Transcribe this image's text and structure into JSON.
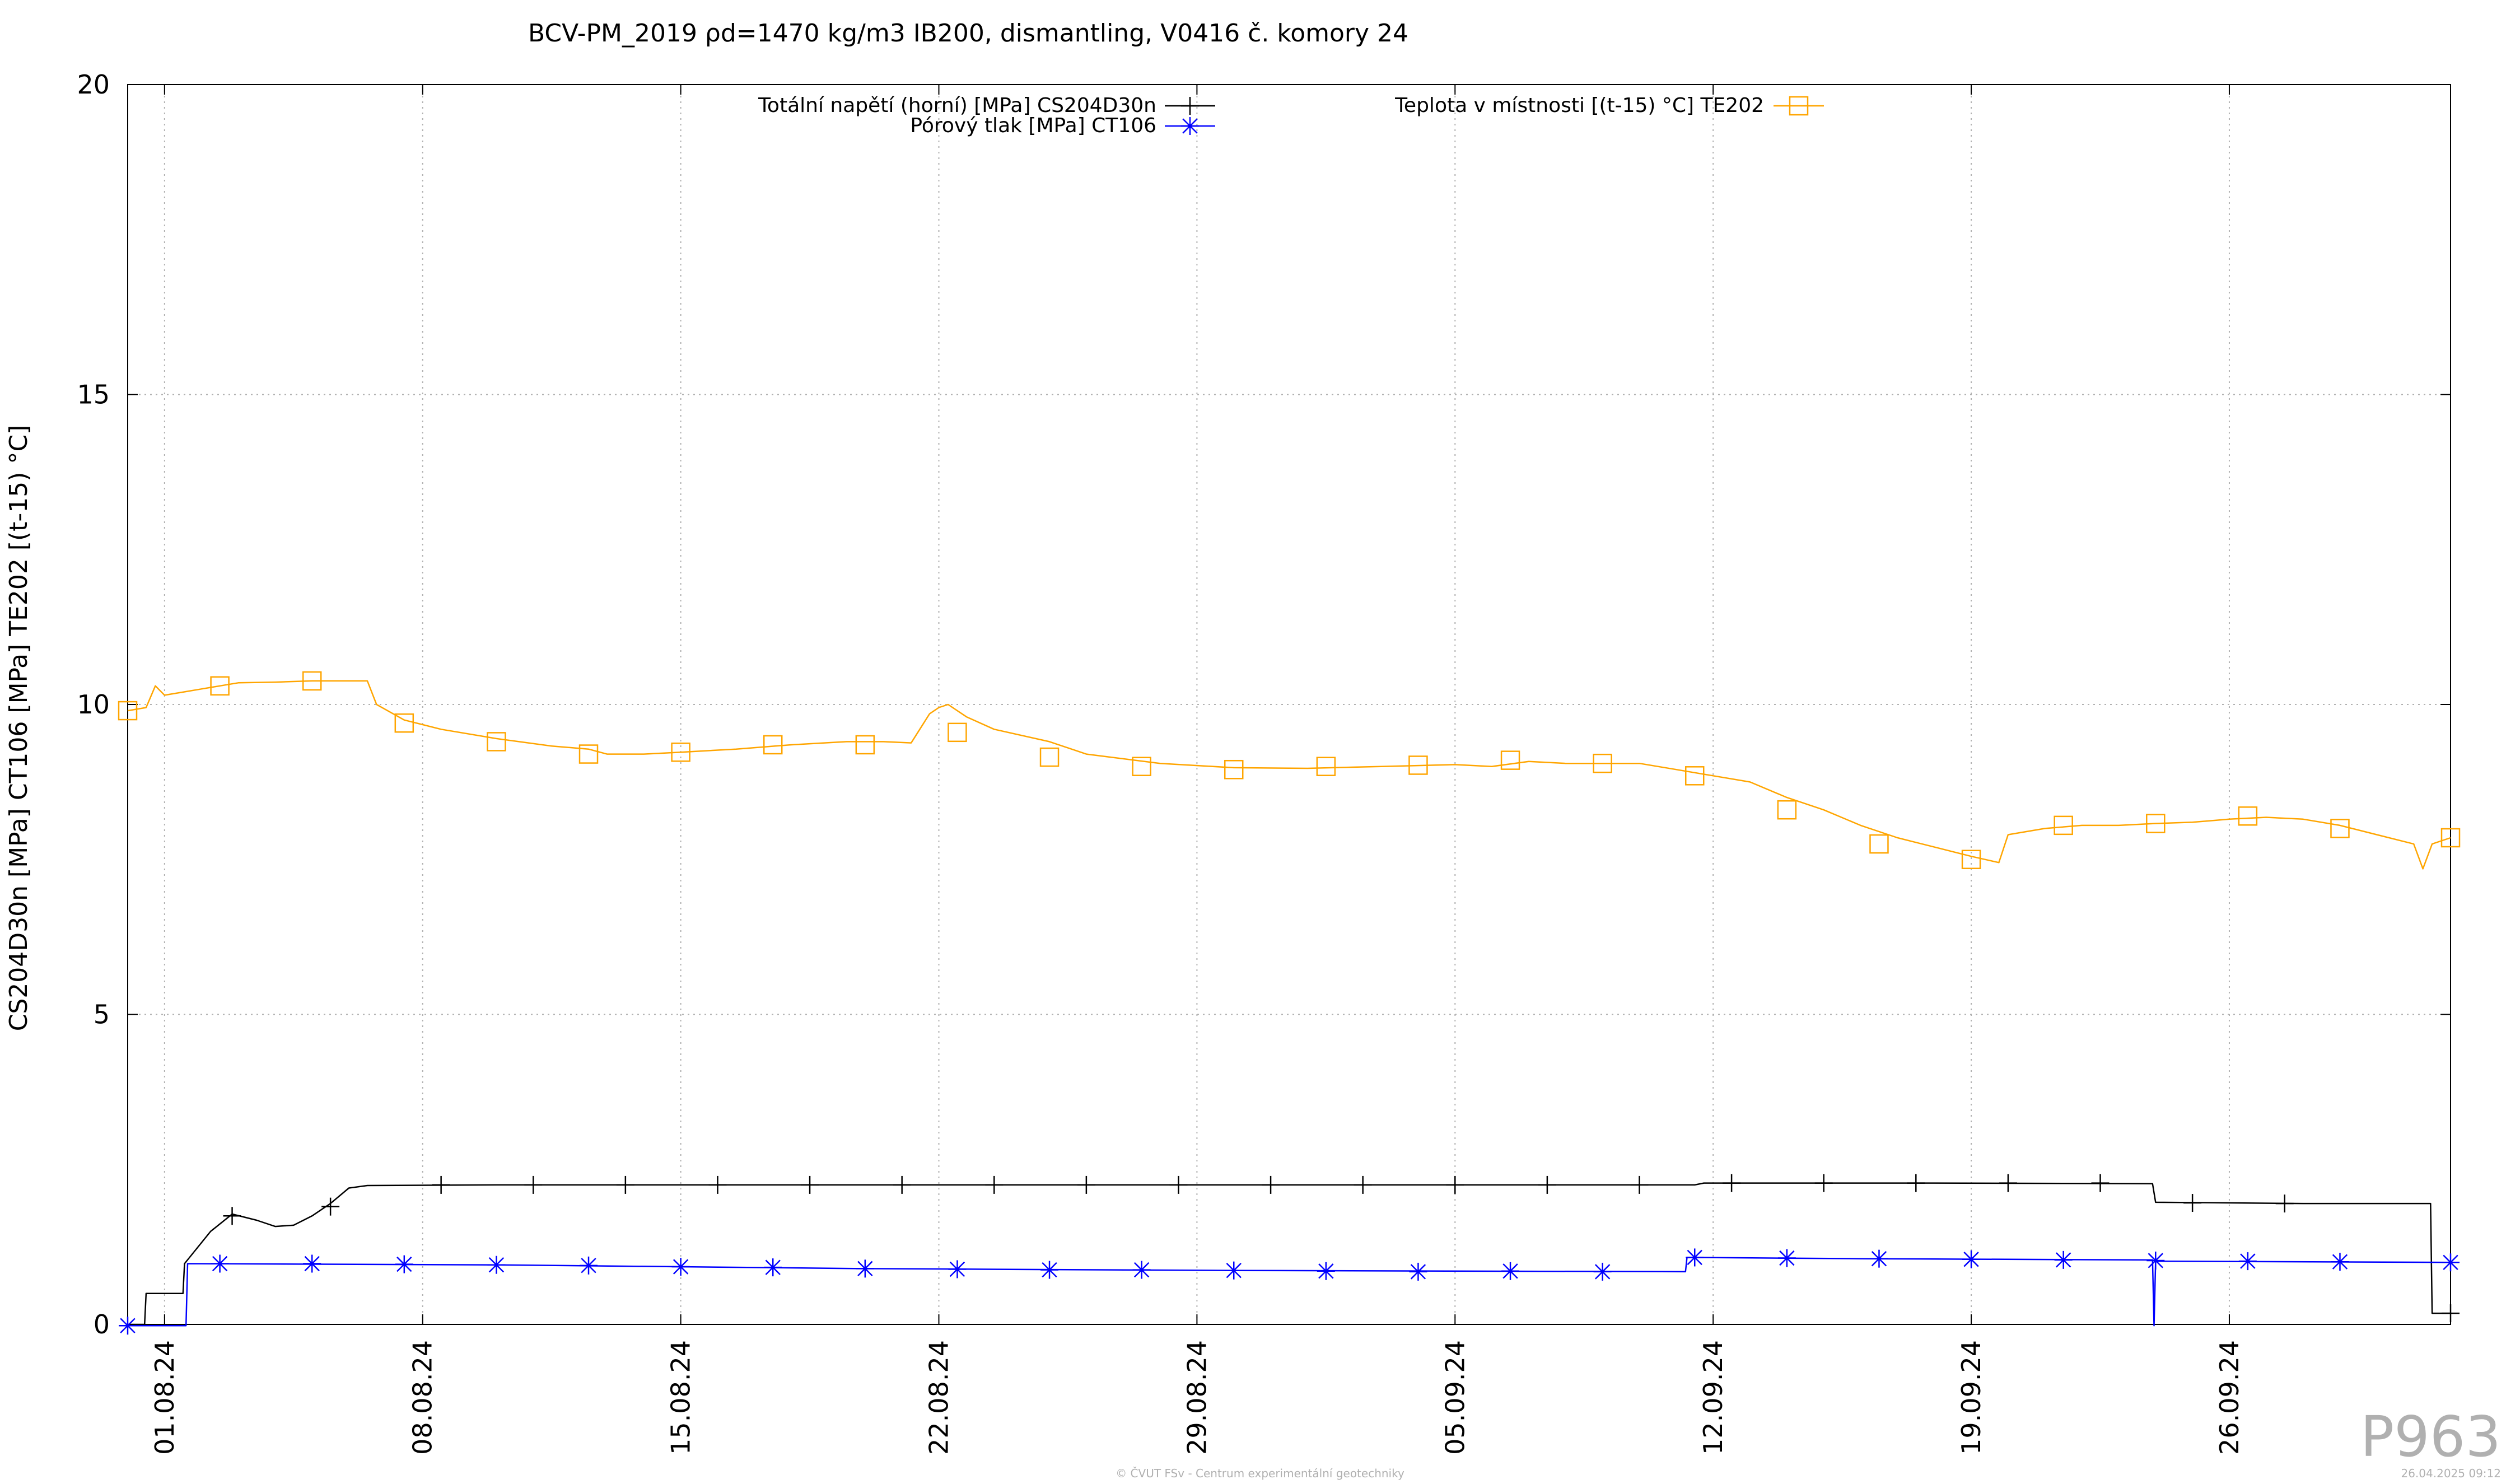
{
  "chart_data": {
    "type": "line",
    "title": "BCV-PM_2019 ρd=1470 kg/m3 IB200, dismantling, V0416 č. komory 24",
    "ylabel": "CS204D30n [MPa] CT106 [MPa] TE202 [(t-15) °C]",
    "xlabel": "",
    "ylim": [
      0,
      20
    ],
    "xlim": [
      "2024-07-31",
      "2024-10-02"
    ],
    "yticks": [
      0,
      5,
      10,
      15,
      20
    ],
    "xtick_labels": [
      {
        "label": "01.08.24",
        "date": "2024-08-01"
      },
      {
        "label": "08.08.24",
        "date": "2024-08-08"
      },
      {
        "label": "15.08.24",
        "date": "2024-08-15"
      },
      {
        "label": "22.08.24",
        "date": "2024-08-22"
      },
      {
        "label": "29.08.24",
        "date": "2024-08-29"
      },
      {
        "label": "05.09.24",
        "date": "2024-09-05"
      },
      {
        "label": "12.09.24",
        "date": "2024-09-12"
      },
      {
        "label": "19.09.24",
        "date": "2024-09-19"
      },
      {
        "label": "26.09.24",
        "date": "2024-09-26"
      }
    ],
    "grid": true,
    "legend_position": "top",
    "series": [
      {
        "name": "Totální napětí (horní) [MPa] CS204D30n",
        "color": "#000000",
        "marker": "plus",
        "points": [
          [
            "2024-07-31T00:00",
            0.0
          ],
          [
            "2024-07-31T11:00",
            0.0
          ],
          [
            "2024-07-31T12:00",
            0.5
          ],
          [
            "2024-08-01T12:00",
            0.5
          ],
          [
            "2024-08-01T13:00",
            0.98
          ],
          [
            "2024-08-02T06:00",
            1.5
          ],
          [
            "2024-08-02T20:00",
            1.78
          ],
          [
            "2024-08-03T12:00",
            1.68
          ],
          [
            "2024-08-04T00:00",
            1.58
          ],
          [
            "2024-08-04T12:00",
            1.6
          ],
          [
            "2024-08-05T00:00",
            1.75
          ],
          [
            "2024-08-05T12:00",
            1.95
          ],
          [
            "2024-08-06T00:00",
            2.2
          ],
          [
            "2024-08-06T12:00",
            2.24
          ],
          [
            "2024-08-10T00:00",
            2.25
          ],
          [
            "2024-08-20T00:00",
            2.25
          ],
          [
            "2024-09-01T00:00",
            2.25
          ],
          [
            "2024-09-11T12:00",
            2.25
          ],
          [
            "2024-09-11T18:00",
            2.28
          ],
          [
            "2024-09-18T00:00",
            2.28
          ],
          [
            "2024-09-23T22:00",
            2.27
          ],
          [
            "2024-09-24T00:00",
            1.97
          ],
          [
            "2024-09-28T00:00",
            1.95
          ],
          [
            "2024-10-01T11:00",
            1.95
          ],
          [
            "2024-10-01T12:00",
            0.18
          ],
          [
            "2024-10-02T00:00",
            0.18
          ]
        ],
        "marker_points": [
          [
            "2024-08-02T20:00",
            1.75
          ],
          [
            "2024-08-05T12:00",
            1.9
          ],
          [
            "2024-08-08T12:00",
            2.25
          ],
          [
            "2024-08-11T00:00",
            2.25
          ],
          [
            "2024-08-13T12:00",
            2.25
          ],
          [
            "2024-08-16T00:00",
            2.25
          ],
          [
            "2024-08-18T12:00",
            2.25
          ],
          [
            "2024-08-21T00:00",
            2.25
          ],
          [
            "2024-08-23T12:00",
            2.25
          ],
          [
            "2024-08-26T00:00",
            2.25
          ],
          [
            "2024-08-28T12:00",
            2.25
          ],
          [
            "2024-08-31T00:00",
            2.25
          ],
          [
            "2024-09-02T12:00",
            2.25
          ],
          [
            "2024-09-05T00:00",
            2.25
          ],
          [
            "2024-09-07T12:00",
            2.25
          ],
          [
            "2024-09-10T00:00",
            2.25
          ],
          [
            "2024-09-12T12:00",
            2.28
          ],
          [
            "2024-09-15T00:00",
            2.28
          ],
          [
            "2024-09-17T12:00",
            2.28
          ],
          [
            "2024-09-20T00:00",
            2.28
          ],
          [
            "2024-09-22T12:00",
            2.28
          ],
          [
            "2024-09-25T00:00",
            1.96
          ],
          [
            "2024-09-27T12:00",
            1.95
          ],
          [
            "2024-10-02T00:00",
            0.18
          ]
        ]
      },
      {
        "name": "Pórový tlak [MPa] CT106",
        "color": "#0000ff",
        "marker": "asterisk",
        "points": [
          [
            "2024-07-31T00:00",
            -0.02
          ],
          [
            "2024-08-01T14:00",
            -0.02
          ],
          [
            "2024-08-01T15:00",
            0.98
          ],
          [
            "2024-08-10T00:00",
            0.96
          ],
          [
            "2024-08-20T00:00",
            0.9
          ],
          [
            "2024-08-30T00:00",
            0.87
          ],
          [
            "2024-09-11T06:00",
            0.85
          ],
          [
            "2024-09-11T07:00",
            1.08
          ],
          [
            "2024-09-16T00:00",
            1.06
          ],
          [
            "2024-09-23T22:00",
            1.04
          ],
          [
            "2024-09-23T23:00",
            -0.02
          ],
          [
            "2024-09-24T00:00",
            1.02
          ],
          [
            "2024-10-02T00:00",
            1.0
          ]
        ],
        "marker_points": [
          [
            "2024-07-31T00:00",
            -0.02
          ],
          [
            "2024-08-02T12:00",
            0.98
          ],
          [
            "2024-08-05T00:00",
            0.98
          ],
          [
            "2024-08-07T12:00",
            0.97
          ],
          [
            "2024-08-10T00:00",
            0.96
          ],
          [
            "2024-08-12T12:00",
            0.95
          ],
          [
            "2024-08-15T00:00",
            0.93
          ],
          [
            "2024-08-17T12:00",
            0.92
          ],
          [
            "2024-08-20T00:00",
            0.9
          ],
          [
            "2024-08-22T12:00",
            0.89
          ],
          [
            "2024-08-25T00:00",
            0.88
          ],
          [
            "2024-08-27T12:00",
            0.88
          ],
          [
            "2024-08-30T00:00",
            0.87
          ],
          [
            "2024-09-01T12:00",
            0.86
          ],
          [
            "2024-09-04T00:00",
            0.85
          ],
          [
            "2024-09-06T12:00",
            0.86
          ],
          [
            "2024-09-09T00:00",
            0.85
          ],
          [
            "2024-09-11T12:00",
            1.08
          ],
          [
            "2024-09-14T00:00",
            1.07
          ],
          [
            "2024-09-16T12:00",
            1.06
          ],
          [
            "2024-09-19T00:00",
            1.05
          ],
          [
            "2024-09-21T12:00",
            1.04
          ],
          [
            "2024-09-24T00:00",
            1.03
          ],
          [
            "2024-09-26T12:00",
            1.02
          ],
          [
            "2024-09-29T00:00",
            1.01
          ],
          [
            "2024-10-02T00:00",
            1.0
          ]
        ]
      },
      {
        "name": "Teplota v místnosti [(t-15) °C] TE202",
        "color": "#ffa500",
        "marker": "square",
        "points": [
          [
            "2024-07-31T00:00",
            9.9
          ],
          [
            "2024-07-31T12:00",
            9.95
          ],
          [
            "2024-07-31T18:00",
            10.3
          ],
          [
            "2024-08-01T00:00",
            10.15
          ],
          [
            "2024-08-01T12:00",
            10.2
          ],
          [
            "2024-08-02T00:00",
            10.25
          ],
          [
            "2024-08-02T12:00",
            10.3
          ],
          [
            "2024-08-03T00:00",
            10.35
          ],
          [
            "2024-08-04T00:00",
            10.36
          ],
          [
            "2024-08-05T00:00",
            10.38
          ],
          [
            "2024-08-06T12:00",
            10.38
          ],
          [
            "2024-08-06T18:00",
            10.0
          ],
          [
            "2024-08-07T12:00",
            9.75
          ],
          [
            "2024-08-08T12:00",
            9.6
          ],
          [
            "2024-08-10T00:00",
            9.45
          ],
          [
            "2024-08-11T12:00",
            9.33
          ],
          [
            "2024-08-12T12:00",
            9.28
          ],
          [
            "2024-08-13T00:00",
            9.2
          ],
          [
            "2024-08-14T00:00",
            9.2
          ],
          [
            "2024-08-15T00:00",
            9.23
          ],
          [
            "2024-08-16T12:00",
            9.28
          ],
          [
            "2024-08-18T00:00",
            9.35
          ],
          [
            "2024-08-19T12:00",
            9.4
          ],
          [
            "2024-08-20T12:00",
            9.4
          ],
          [
            "2024-08-21T06:00",
            9.38
          ],
          [
            "2024-08-21T18:00",
            9.85
          ],
          [
            "2024-08-22T00:00",
            9.95
          ],
          [
            "2024-08-22T06:00",
            10.0
          ],
          [
            "2024-08-22T18:00",
            9.8
          ],
          [
            "2024-08-23T12:00",
            9.6
          ],
          [
            "2024-08-25T00:00",
            9.4
          ],
          [
            "2024-08-26T00:00",
            9.2
          ],
          [
            "2024-08-28T00:00",
            9.05
          ],
          [
            "2024-08-30T00:00",
            8.98
          ],
          [
            "2024-09-01T00:00",
            8.97
          ],
          [
            "2024-09-03T00:00",
            9.0
          ],
          [
            "2024-09-05T00:00",
            9.03
          ],
          [
            "2024-09-06T00:00",
            9.0
          ],
          [
            "2024-09-07T00:00",
            9.08
          ],
          [
            "2024-09-08T00:00",
            9.05
          ],
          [
            "2024-09-10T00:00",
            9.05
          ],
          [
            "2024-09-11T00:00",
            8.95
          ],
          [
            "2024-09-12T00:00",
            8.85
          ],
          [
            "2024-09-13T00:00",
            8.75
          ],
          [
            "2024-09-14T00:00",
            8.5
          ],
          [
            "2024-09-15T00:00",
            8.3
          ],
          [
            "2024-09-16T00:00",
            8.05
          ],
          [
            "2024-09-17T00:00",
            7.85
          ],
          [
            "2024-09-18T00:00",
            7.7
          ],
          [
            "2024-09-19T00:00",
            7.55
          ],
          [
            "2024-09-19T18:00",
            7.45
          ],
          [
            "2024-09-20T00:00",
            7.9
          ],
          [
            "2024-09-21T00:00",
            8.0
          ],
          [
            "2024-09-22T00:00",
            8.05
          ],
          [
            "2024-09-23T00:00",
            8.05
          ],
          [
            "2024-09-24T00:00",
            8.08
          ],
          [
            "2024-09-25T00:00",
            8.1
          ],
          [
            "2024-09-26T00:00",
            8.15
          ],
          [
            "2024-09-27T00:00",
            8.18
          ],
          [
            "2024-09-28T00:00",
            8.15
          ],
          [
            "2024-09-29T00:00",
            8.05
          ],
          [
            "2024-09-30T00:00",
            7.9
          ],
          [
            "2024-10-01T00:00",
            7.75
          ],
          [
            "2024-10-01T06:00",
            7.35
          ],
          [
            "2024-10-01T12:00",
            7.75
          ],
          [
            "2024-10-02T00:00",
            7.85
          ]
        ],
        "marker_points": [
          [
            "2024-07-31T00:00",
            9.9
          ],
          [
            "2024-08-02T12:00",
            10.3
          ],
          [
            "2024-08-05T00:00",
            10.38
          ],
          [
            "2024-08-07T12:00",
            9.7
          ],
          [
            "2024-08-10T00:00",
            9.4
          ],
          [
            "2024-08-12T12:00",
            9.2
          ],
          [
            "2024-08-15T00:00",
            9.23
          ],
          [
            "2024-08-17T12:00",
            9.35
          ],
          [
            "2024-08-20T00:00",
            9.35
          ],
          [
            "2024-08-22T12:00",
            9.55
          ],
          [
            "2024-08-25T00:00",
            9.15
          ],
          [
            "2024-08-27T12:00",
            9.0
          ],
          [
            "2024-08-30T00:00",
            8.95
          ],
          [
            "2024-09-01T12:00",
            9.0
          ],
          [
            "2024-09-04T00:00",
            9.02
          ],
          [
            "2024-09-06T12:00",
            9.1
          ],
          [
            "2024-09-09T00:00",
            9.05
          ],
          [
            "2024-09-11T12:00",
            8.85
          ],
          [
            "2024-09-14T00:00",
            8.3
          ],
          [
            "2024-09-16T12:00",
            7.75
          ],
          [
            "2024-09-19T00:00",
            7.5
          ],
          [
            "2024-09-21T12:00",
            8.05
          ],
          [
            "2024-09-24T00:00",
            8.08
          ],
          [
            "2024-09-26T12:00",
            8.2
          ],
          [
            "2024-09-29T00:00",
            8.0
          ],
          [
            "2024-10-02T00:00",
            7.85
          ]
        ]
      }
    ]
  },
  "footer": {
    "plot_id": "P963",
    "credit": "© ČVUT FSv - Centrum experimentální geotechniky",
    "timestamp": "26.04.2025 09:12"
  }
}
